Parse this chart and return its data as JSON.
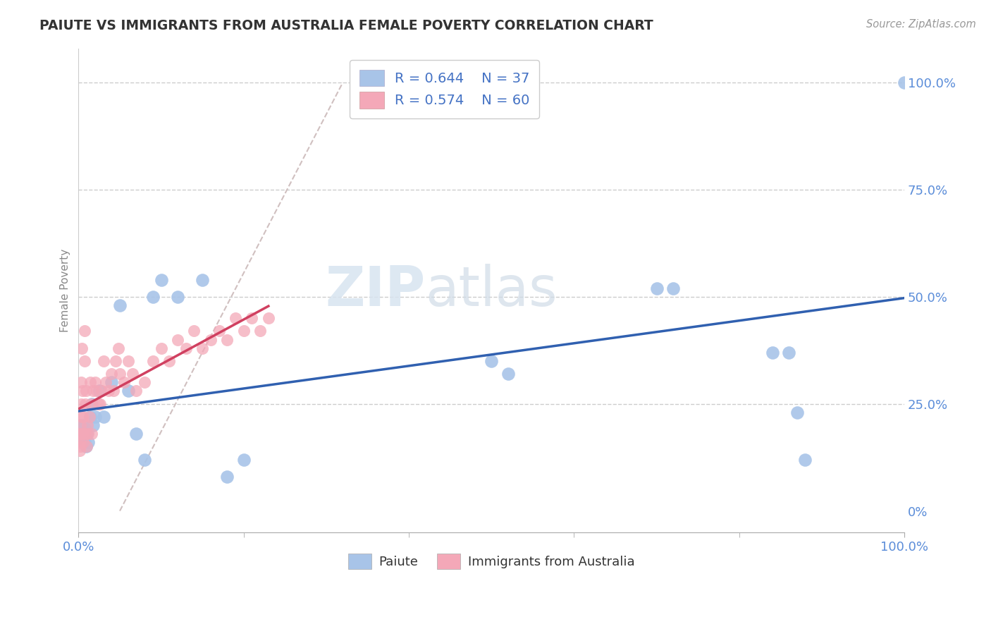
{
  "title": "PAIUTE VS IMMIGRANTS FROM AUSTRALIA FEMALE POVERTY CORRELATION CHART",
  "source": "Source: ZipAtlas.com",
  "ylabel": "Female Poverty",
  "legend_r": [
    "R = 0.644",
    "R = 0.574"
  ],
  "legend_n": [
    "N = 37",
    "N = 60"
  ],
  "paiute_color": "#a8c4e8",
  "australia_color": "#f4a8b8",
  "paiute_line_color": "#3060b0",
  "australia_line_color": "#d04060",
  "watermark_zip": "ZIP",
  "watermark_atlas": "atlas",
  "paiute_x": [
    0.001,
    0.002,
    0.003,
    0.004,
    0.005,
    0.006,
    0.007,
    0.008,
    0.009,
    0.01,
    0.012,
    0.014,
    0.016,
    0.018,
    0.02,
    0.025,
    0.03,
    0.04,
    0.05,
    0.06,
    0.07,
    0.08,
    0.09,
    0.1,
    0.12,
    0.15,
    0.18,
    0.2,
    0.5,
    0.52,
    0.7,
    0.72,
    0.84,
    0.86,
    0.87,
    0.88,
    1.0
  ],
  "paiute_y": [
    0.2,
    0.19,
    0.18,
    0.17,
    0.2,
    0.18,
    0.16,
    0.19,
    0.15,
    0.18,
    0.16,
    0.22,
    0.25,
    0.2,
    0.22,
    0.28,
    0.22,
    0.3,
    0.48,
    0.28,
    0.18,
    0.12,
    0.5,
    0.54,
    0.5,
    0.54,
    0.08,
    0.12,
    0.35,
    0.32,
    0.52,
    0.52,
    0.37,
    0.37,
    0.23,
    0.12,
    1.0
  ],
  "australia_x": [
    0.001,
    0.001,
    0.001,
    0.002,
    0.002,
    0.002,
    0.003,
    0.003,
    0.004,
    0.004,
    0.005,
    0.005,
    0.006,
    0.006,
    0.007,
    0.007,
    0.008,
    0.008,
    0.009,
    0.01,
    0.011,
    0.012,
    0.013,
    0.014,
    0.015,
    0.016,
    0.018,
    0.02,
    0.022,
    0.024,
    0.026,
    0.028,
    0.03,
    0.033,
    0.036,
    0.04,
    0.042,
    0.045,
    0.048,
    0.05,
    0.055,
    0.06,
    0.065,
    0.07,
    0.08,
    0.09,
    0.1,
    0.11,
    0.12,
    0.13,
    0.14,
    0.15,
    0.16,
    0.17,
    0.18,
    0.19,
    0.2,
    0.21,
    0.22,
    0.23
  ],
  "australia_y": [
    0.18,
    0.16,
    0.14,
    0.2,
    0.18,
    0.15,
    0.3,
    0.25,
    0.38,
    0.22,
    0.28,
    0.18,
    0.22,
    0.16,
    0.42,
    0.35,
    0.25,
    0.18,
    0.28,
    0.15,
    0.2,
    0.18,
    0.22,
    0.3,
    0.25,
    0.18,
    0.28,
    0.3,
    0.28,
    0.25,
    0.25,
    0.28,
    0.35,
    0.3,
    0.28,
    0.32,
    0.28,
    0.35,
    0.38,
    0.32,
    0.3,
    0.35,
    0.32,
    0.28,
    0.3,
    0.35,
    0.38,
    0.35,
    0.4,
    0.38,
    0.42,
    0.38,
    0.4,
    0.42,
    0.4,
    0.45,
    0.42,
    0.45,
    0.42,
    0.45
  ],
  "xlim": [
    0.0,
    1.0
  ],
  "ylim": [
    -0.05,
    1.08
  ],
  "background_color": "#ffffff",
  "grid_color": "#cccccc",
  "axis_text_color": "#5b8dd9",
  "title_color": "#333333",
  "ylabel_color": "#888888"
}
